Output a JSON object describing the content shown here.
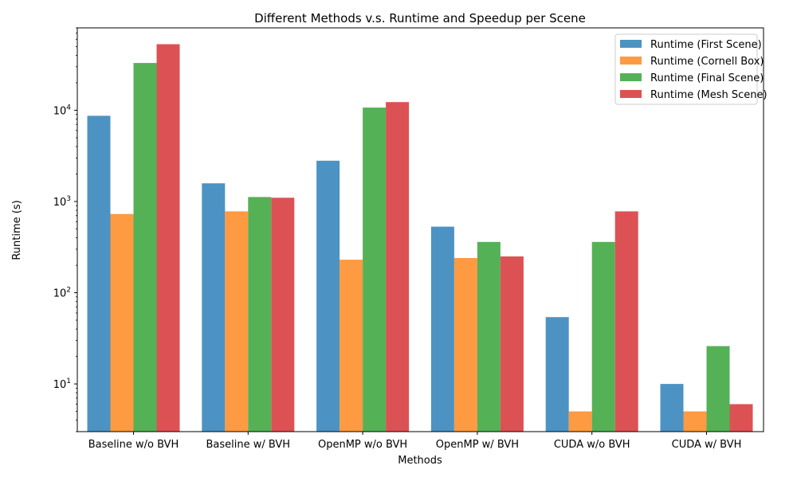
{
  "chart_data": {
    "type": "bar",
    "title": "Different Methods v.s. Runtime and Speedup per Scene",
    "xlabel": "Methods",
    "ylabel": "Runtime (s)",
    "yscale": "log",
    "ylim": [
      3,
      80000
    ],
    "yticks": [
      {
        "value": 10,
        "base": "10",
        "exp": "1"
      },
      {
        "value": 100,
        "base": "10",
        "exp": "2"
      },
      {
        "value": 1000,
        "base": "10",
        "exp": "3"
      },
      {
        "value": 10000,
        "base": "10",
        "exp": "4"
      }
    ],
    "grid": false,
    "legend_position": "top-right",
    "categories": [
      "Baseline w/o BVH",
      "Baseline w/ BVH",
      "OpenMP w/o BVH",
      "OpenMP w/ BVH",
      "CUDA w/o BVH",
      "CUDA w/ BVH"
    ],
    "series": [
      {
        "name": "Runtime (First Scene)",
        "color": "#4c93c3",
        "values": [
          8700,
          1580,
          2800,
          530,
          54,
          10
        ]
      },
      {
        "name": "Runtime (Cornell Box)",
        "color": "#fd9a42",
        "values": [
          730,
          780,
          230,
          240,
          5,
          5
        ]
      },
      {
        "name": "Runtime (Final Scene)",
        "color": "#55b155",
        "values": [
          33000,
          1120,
          10700,
          360,
          360,
          26
        ]
      },
      {
        "name": "Runtime (Mesh Scene)",
        "color": "#dc5254",
        "values": [
          53000,
          1100,
          12300,
          250,
          780,
          6
        ]
      }
    ]
  }
}
